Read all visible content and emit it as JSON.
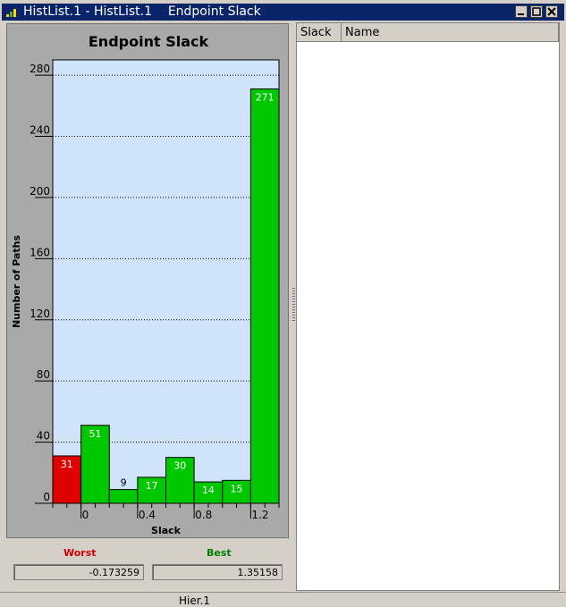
{
  "window": {
    "title": "HistList.1 - HistList.1    Endpoint Slack"
  },
  "chart_data": {
    "type": "bar",
    "title": "Endpoint Slack",
    "xlabel": "Slack",
    "ylabel": "Number of Paths",
    "bin_edges": [
      -0.2,
      0.0,
      0.2,
      0.4,
      0.6,
      0.8,
      1.0,
      1.2,
      1.4
    ],
    "values": [
      31,
      51,
      9,
      17,
      30,
      14,
      15,
      271
    ],
    "bar_colors": [
      "#e00000",
      "#00c800",
      "#00c800",
      "#00c800",
      "#00c800",
      "#00c800",
      "#00c800",
      "#00c800"
    ],
    "xlim": [
      -0.2,
      1.4
    ],
    "ylim": [
      0,
      290
    ],
    "yticks": [
      0,
      40,
      80,
      120,
      160,
      200,
      240,
      280
    ],
    "xticks": [
      0,
      0.4,
      0.8,
      1.2
    ],
    "xtick_labels": [
      "0",
      "0.4",
      "0.8",
      "1.2"
    ],
    "grid": true,
    "plot_background": "#cfe3fa"
  },
  "stats": {
    "worst_label": "Worst",
    "worst_value": "-0.173259",
    "worst_color": "#cc0000",
    "best_label": "Best",
    "best_value": "1.35158",
    "best_color": "#008000"
  },
  "table": {
    "columns": [
      "Slack",
      "Name"
    ]
  },
  "status": {
    "text": "Hier.1"
  }
}
